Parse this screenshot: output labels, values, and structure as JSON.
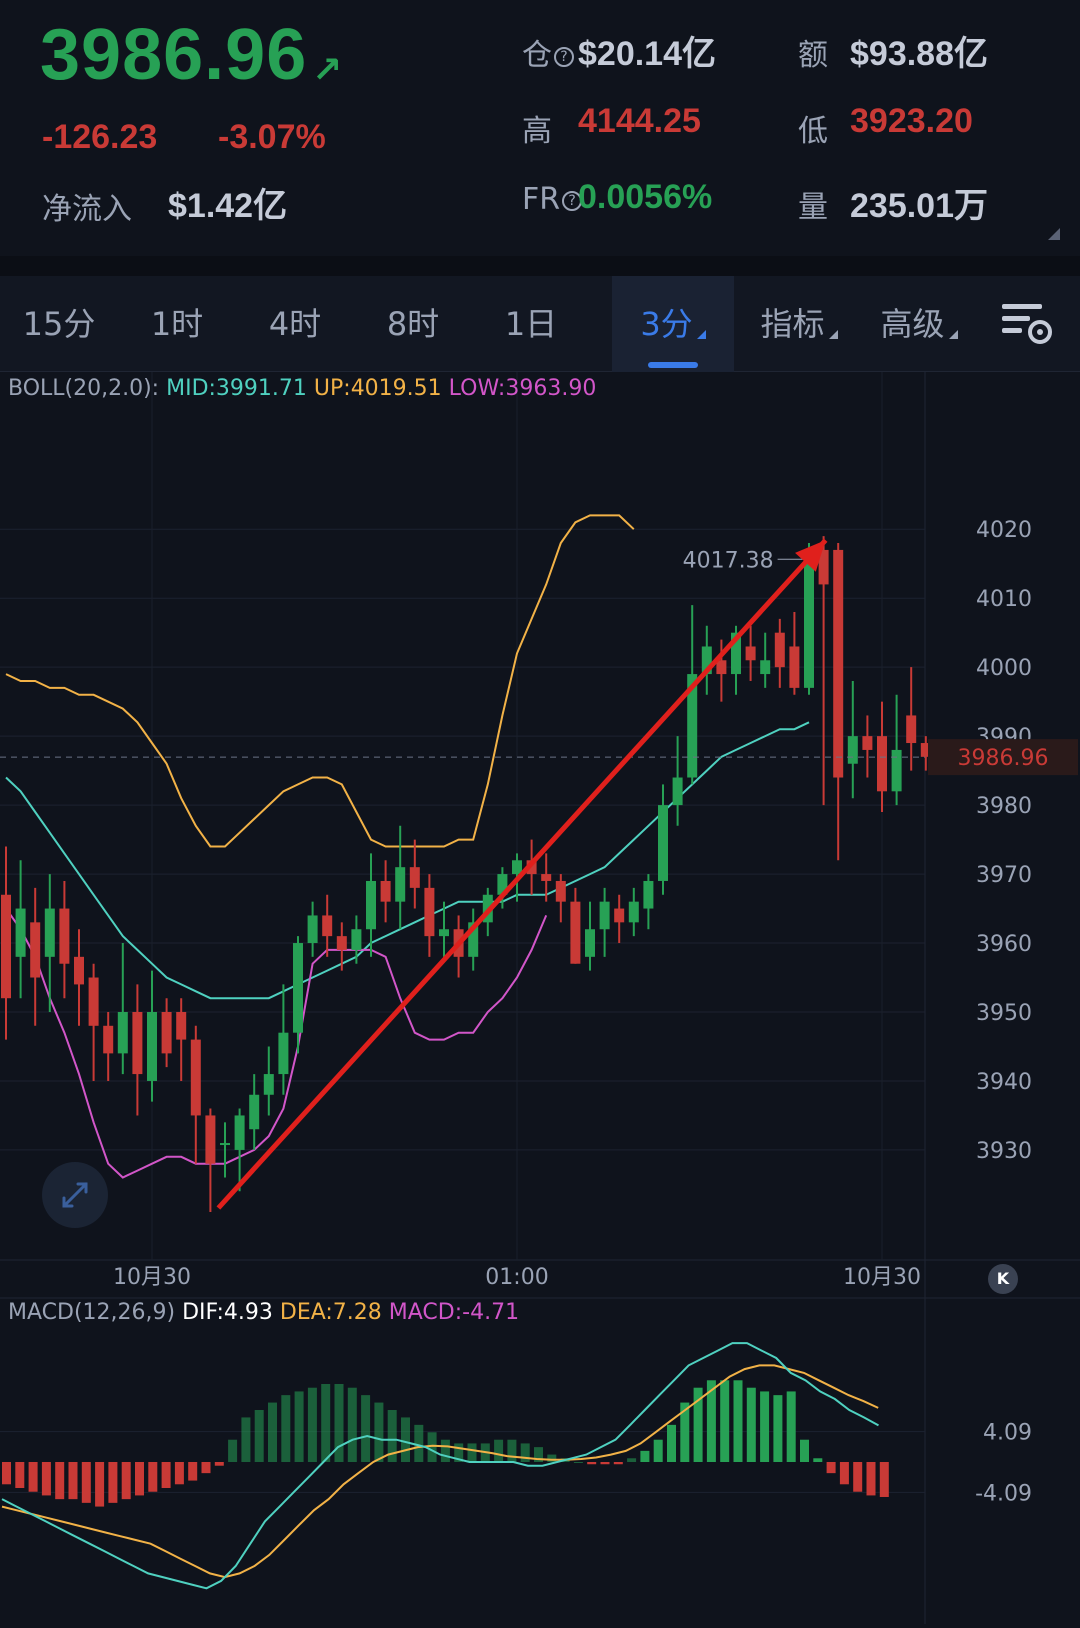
{
  "header": {
    "price": "3986.96",
    "arrow": "↗",
    "change": "-126.23",
    "change_pct": "-3.07%",
    "netin_label": "净流入",
    "netin_value": "$1.42亿",
    "oi_label": "仓",
    "oi_help": "?",
    "oi_value": "$20.14亿",
    "amount_label": "额",
    "amount_value": "$93.88亿",
    "high_label": "高",
    "high_value": "4144.25",
    "low_label": "低",
    "low_value": "3923.20",
    "fr_label": "FR",
    "fr_help": "?",
    "fr_value": "0.0056%",
    "vol_label": "量",
    "vol_value": "235.01万"
  },
  "tabs": [
    {
      "label": "15分",
      "active": false,
      "dropdown": false
    },
    {
      "label": "1时",
      "active": false,
      "dropdown": false
    },
    {
      "label": "4时",
      "active": false,
      "dropdown": false
    },
    {
      "label": "8时",
      "active": false,
      "dropdown": false
    },
    {
      "label": "1日",
      "active": false,
      "dropdown": false
    },
    {
      "label": "3分",
      "active": true,
      "dropdown": true
    },
    {
      "label": "指标",
      "active": false,
      "dropdown": true
    },
    {
      "label": "高级",
      "active": false,
      "dropdown": true
    }
  ],
  "icons": {
    "settings": "chart-settings-icon",
    "expand": "expand-icon",
    "back": "jump-to-latest-icon"
  },
  "colors": {
    "up": "#27a155",
    "down": "#c93a36",
    "mid": "#4fd1c0",
    "upper": "#f2b247",
    "lower": "#d256c9",
    "dif": "#4fd1c0",
    "dea": "#f2b247",
    "accent": "#3a7be8"
  },
  "boll_legend": {
    "name": "BOLL(20,2.0):",
    "mid": "MID:3991.71",
    "up": "UP:4019.51",
    "low": "LOW:3963.90"
  },
  "macd_legend": {
    "name": "MACD(12,26,9)",
    "dif": "DIF:4.93",
    "dea": "DEA:7.28",
    "macd": "MACD:-4.71"
  },
  "chart_data": [
    {
      "type": "candlestick",
      "title": "BOLL(20,2.0)",
      "y_ticks": [
        4020,
        4010,
        4000,
        3990,
        3980,
        3970,
        3960,
        3950,
        3940,
        3930
      ],
      "ylim": [
        3921,
        4037
      ],
      "x_tick_labels": [
        "10月30",
        "01:00",
        "10月30"
      ],
      "x_tick_index": [
        10,
        35,
        60
      ],
      "current_price": "3986.96",
      "max_annotation": "4017.38",
      "candles": [
        {
          "o": 3967,
          "c": 3952,
          "h": 3974,
          "l": 3946
        },
        {
          "o": 3958,
          "c": 3965,
          "h": 3972,
          "l": 3952
        },
        {
          "o": 3963,
          "c": 3955,
          "h": 3968,
          "l": 3948
        },
        {
          "o": 3958,
          "c": 3965,
          "h": 3970,
          "l": 3950
        },
        {
          "o": 3965,
          "c": 3957,
          "h": 3969,
          "l": 3952
        },
        {
          "o": 3958,
          "c": 3954,
          "h": 3962,
          "l": 3948
        },
        {
          "o": 3955,
          "c": 3948,
          "h": 3957,
          "l": 3940
        },
        {
          "o": 3948,
          "c": 3944,
          "h": 3950,
          "l": 3940
        },
        {
          "o": 3944,
          "c": 3950,
          "h": 3960,
          "l": 3941
        },
        {
          "o": 3950,
          "c": 3941,
          "h": 3954,
          "l": 3935
        },
        {
          "o": 3940,
          "c": 3950,
          "h": 3956,
          "l": 3937
        },
        {
          "o": 3950,
          "c": 3944,
          "h": 3952,
          "l": 3942
        },
        {
          "o": 3950,
          "c": 3946,
          "h": 3952,
          "l": 3940
        },
        {
          "o": 3946,
          "c": 3935,
          "h": 3948,
          "l": 3928
        },
        {
          "o": 3935,
          "c": 3928,
          "h": 3936,
          "l": 3921
        },
        {
          "o": 3931,
          "c": 3931,
          "h": 3934,
          "l": 3926
        },
        {
          "o": 3930,
          "c": 3935,
          "h": 3936,
          "l": 3924
        },
        {
          "o": 3933,
          "c": 3938,
          "h": 3941,
          "l": 3930
        },
        {
          "o": 3938,
          "c": 3941,
          "h": 3945,
          "l": 3935
        },
        {
          "o": 3941,
          "c": 3947,
          "h": 3954,
          "l": 3938
        },
        {
          "o": 3947,
          "c": 3960,
          "h": 3961,
          "l": 3944
        },
        {
          "o": 3960,
          "c": 3964,
          "h": 3966,
          "l": 3958
        },
        {
          "o": 3964,
          "c": 3961,
          "h": 3967,
          "l": 3958
        },
        {
          "o": 3961,
          "c": 3959,
          "h": 3963,
          "l": 3956
        },
        {
          "o": 3959,
          "c": 3962,
          "h": 3964,
          "l": 3957
        },
        {
          "o": 3962,
          "c": 3969,
          "h": 3973,
          "l": 3958
        },
        {
          "o": 3969,
          "c": 3966,
          "h": 3972,
          "l": 3963
        },
        {
          "o": 3966,
          "c": 3971,
          "h": 3977,
          "l": 3962
        },
        {
          "o": 3971,
          "c": 3968,
          "h": 3975,
          "l": 3965
        },
        {
          "o": 3968,
          "c": 3961,
          "h": 3970,
          "l": 3958
        },
        {
          "o": 3961,
          "c": 3962,
          "h": 3966,
          "l": 3958
        },
        {
          "o": 3962,
          "c": 3958,
          "h": 3964,
          "l": 3955
        },
        {
          "o": 3958,
          "c": 3963,
          "h": 3965,
          "l": 3956
        },
        {
          "o": 3963,
          "c": 3967,
          "h": 3968,
          "l": 3961
        },
        {
          "o": 3967,
          "c": 3970,
          "h": 3971,
          "l": 3965
        },
        {
          "o": 3970,
          "c": 3972,
          "h": 3973,
          "l": 3966
        },
        {
          "o": 3972,
          "c": 3970,
          "h": 3975,
          "l": 3967
        },
        {
          "o": 3970,
          "c": 3969,
          "h": 3973,
          "l": 3966
        },
        {
          "o": 3969,
          "c": 3966,
          "h": 3970,
          "l": 3963
        },
        {
          "o": 3966,
          "c": 3957,
          "h": 3968,
          "l": 3957
        },
        {
          "o": 3958,
          "c": 3962,
          "h": 3966,
          "l": 3956
        },
        {
          "o": 3962,
          "c": 3966,
          "h": 3968,
          "l": 3958
        },
        {
          "o": 3965,
          "c": 3963,
          "h": 3967,
          "l": 3960
        },
        {
          "o": 3963,
          "c": 3966,
          "h": 3968,
          "l": 3961
        },
        {
          "o": 3965,
          "c": 3969,
          "h": 3970,
          "l": 3962
        },
        {
          "o": 3969,
          "c": 3980,
          "h": 3983,
          "l": 3967
        },
        {
          "o": 3980,
          "c": 3984,
          "h": 3990,
          "l": 3977
        },
        {
          "o": 3984,
          "c": 3999,
          "h": 4009,
          "l": 3983
        },
        {
          "o": 3999,
          "c": 4003,
          "h": 4006,
          "l": 3996
        },
        {
          "o": 4001,
          "c": 3999,
          "h": 4004,
          "l": 3995
        },
        {
          "o": 3999,
          "c": 4005,
          "h": 4006,
          "l": 3996
        },
        {
          "o": 4003,
          "c": 4001,
          "h": 4006,
          "l": 3998
        },
        {
          "o": 3999,
          "c": 4001,
          "h": 4005,
          "l": 3997
        },
        {
          "o": 4005,
          "c": 4000,
          "h": 4007,
          "l": 3997
        },
        {
          "o": 4003,
          "c": 3997,
          "h": 4008,
          "l": 3996
        },
        {
          "o": 3997,
          "c": 4017,
          "h": 4018,
          "l": 3996
        },
        {
          "o": 4017,
          "c": 4012,
          "h": 4019,
          "l": 3980
        },
        {
          "o": 4017,
          "c": 3984,
          "h": 4018,
          "l": 3972
        },
        {
          "o": 3986,
          "c": 3990,
          "h": 3998,
          "l": 3981
        },
        {
          "o": 3990,
          "c": 3988,
          "h": 3993,
          "l": 3984
        },
        {
          "o": 3990,
          "c": 3982,
          "h": 3995,
          "l": 3979
        },
        {
          "o": 3982,
          "c": 3988,
          "h": 3996,
          "l": 3980
        },
        {
          "o": 3993,
          "c": 3989,
          "h": 4000,
          "l": 3985
        },
        {
          "o": 3989,
          "c": 3987,
          "h": 3990,
          "l": 3985
        }
      ],
      "boll_mid": [
        3984,
        3982,
        3979,
        3976,
        3973,
        3970,
        3967,
        3964,
        3961,
        3959,
        3957,
        3955,
        3954,
        3953,
        3952,
        3952,
        3952,
        3952,
        3952,
        3953,
        3954,
        3955,
        3956,
        3957,
        3958,
        3960,
        3961,
        3962,
        3963,
        3964,
        3965,
        3966,
        3966,
        3966,
        3966,
        3967,
        3967,
        3967,
        3968,
        3969,
        3970,
        3971,
        3973,
        3975,
        3977,
        3979,
        3981,
        3983,
        3985,
        3987,
        3988,
        3989,
        3990,
        3991,
        3991,
        3992
      ],
      "boll_upper": [
        3999,
        3998,
        3998,
        3997,
        3997,
        3996,
        3996,
        3995,
        3994,
        3992,
        3989,
        3986,
        3981,
        3977,
        3974,
        3974,
        3976,
        3978,
        3980,
        3982,
        3983,
        3984,
        3984,
        3983,
        3979,
        3975,
        3974,
        3974,
        3974,
        3974,
        3974,
        3975,
        3975,
        3983,
        3993,
        4002,
        4007,
        4012,
        4018,
        4021,
        4022,
        4022,
        4022,
        4020
      ],
      "boll_lower": [
        3965,
        3962,
        3958,
        3952,
        3947,
        3941,
        3934,
        3928,
        3926,
        3927,
        3928,
        3929,
        3929,
        3928,
        3928,
        3928,
        3929,
        3930,
        3932,
        3936,
        3945,
        3957,
        3959,
        3959,
        3959,
        3959,
        3958,
        3952,
        3947,
        3946,
        3946,
        3947,
        3947,
        3950,
        3952,
        3955,
        3959,
        3964
      ],
      "macd_hist": [
        -3,
        -3.5,
        -4,
        -4.5,
        -5,
        -5,
        -5.5,
        -6,
        -5.5,
        -5,
        -4.5,
        -4,
        -3.5,
        -3,
        -2.5,
        -1.5,
        -0.5,
        3,
        6,
        7,
        8,
        9,
        9.5,
        10,
        10.5,
        10.5,
        10,
        9,
        8,
        7,
        6,
        5,
        4,
        3,
        2.5,
        2.5,
        2.5,
        3,
        3,
        2.5,
        2,
        1,
        0.5,
        0,
        -0.3,
        -0.3,
        -0.3,
        0.5,
        1.5,
        3,
        5,
        8,
        10,
        11,
        11,
        11,
        10,
        9.5,
        9,
        9.5,
        3,
        0.5,
        -1.5,
        -3,
        -4,
        -4.5,
        -4.71
      ],
      "dif": [
        -5,
        -6,
        -7,
        -8,
        -9,
        -10,
        -11,
        -12,
        -13,
        -14,
        -15,
        -15.5,
        -16,
        -16.5,
        -17,
        -16,
        -14,
        -11,
        -8,
        -6,
        -4,
        -2,
        0,
        2,
        3,
        3.5,
        3,
        3,
        2.5,
        2,
        1,
        0.5,
        0,
        0,
        0,
        0,
        -0.5,
        -0.5,
        0,
        0.5,
        1,
        2,
        3,
        5,
        7,
        9,
        11,
        13,
        14,
        15,
        16,
        16,
        15,
        14,
        12,
        11,
        9.5,
        8.5,
        7,
        6,
        4.93
      ],
      "dea": [
        -6,
        -6.5,
        -7,
        -7.5,
        -8,
        -8.5,
        -9,
        -9.5,
        -10,
        -10.5,
        -11,
        -12,
        -13,
        -14,
        -15,
        -15.5,
        -15,
        -14,
        -12.5,
        -10.5,
        -8.5,
        -6.5,
        -5,
        -3,
        -1.5,
        0,
        1,
        1.5,
        2,
        2.2,
        2.1,
        1.8,
        1.5,
        1.2,
        0.8,
        0.6,
        0.4,
        0.3,
        0.3,
        0.4,
        0.6,
        1,
        1.5,
        2.5,
        4,
        5.5,
        7,
        8.5,
        10,
        11.5,
        12.5,
        13,
        13,
        12.5,
        12,
        11,
        10,
        9,
        8.2,
        7.28
      ],
      "macd_y_ticks": [
        4.09,
        -4.09
      ],
      "macd_ylim": [
        -17.5,
        17.5
      ]
    }
  ]
}
